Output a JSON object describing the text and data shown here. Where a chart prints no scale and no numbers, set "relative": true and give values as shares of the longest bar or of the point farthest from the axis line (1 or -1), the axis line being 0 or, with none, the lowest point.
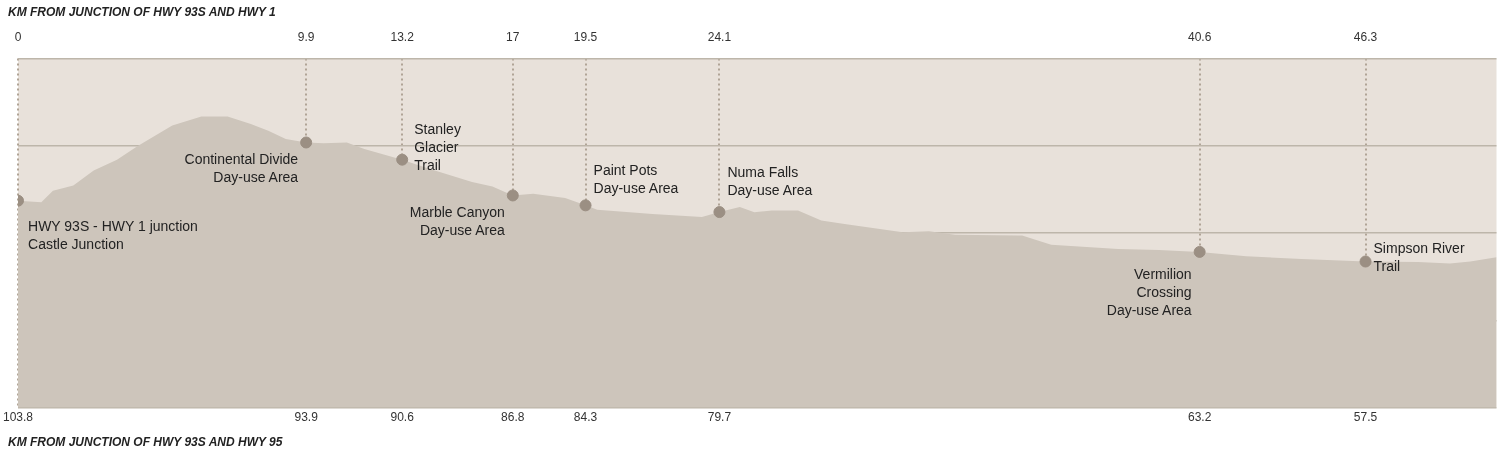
{
  "chart_data": {
    "type": "area",
    "relative": true,
    "grid": true,
    "xlabel": "KM FROM JUNCTION OF HWY 93S AND HWY 95",
    "x2label": "KM FROM JUNCTION OF HWY 93S AND HWY 1",
    "xlim": [
      103.8,
      53.0
    ],
    "xticks": [
      103.8,
      93.9,
      90.6,
      86.8,
      84.3,
      79.7,
      63.2,
      57.5
    ],
    "x2lim": [
      0,
      50.8
    ],
    "x2ticks": [
      0,
      9.9,
      13.2,
      17,
      19.5,
      24.1,
      40.6,
      46.3
    ],
    "series": [
      {
        "type": "area",
        "color": "#cdc5bb",
        "x": [
          103.8,
          103.0,
          102.6,
          101.9,
          101.2,
          100.4,
          99.7,
          98.5,
          97.5,
          96.6,
          95.8,
          95.2,
          94.6,
          93.9,
          93.3,
          92.5,
          91.9,
          90.6,
          89.7,
          88.2,
          87.5,
          86.8,
          86.1,
          85.0,
          84.3,
          83.9,
          82.0,
          80.3,
          79.7,
          79.0,
          78.5,
          77.9,
          77.0,
          76.2,
          75.4,
          73.4,
          72.5,
          71.6,
          69.3,
          68.3,
          66.0,
          64.6,
          63.2,
          61.6,
          59.7,
          57.5,
          55.7,
          54.6,
          53.9,
          53.0
        ],
        "values": [
          0.711,
          0.706,
          0.745,
          0.763,
          0.815,
          0.852,
          0.898,
          0.969,
          1,
          1,
          0.975,
          0.951,
          0.923,
          0.911,
          0.908,
          0.911,
          0.889,
          0.852,
          0.822,
          0.775,
          0.76,
          0.729,
          0.735,
          0.72,
          0.695,
          0.68,
          0.665,
          0.655,
          0.672,
          0.689,
          0.671,
          0.677,
          0.677,
          0.643,
          0.631,
          0.603,
          0.606,
          0.594,
          0.591,
          0.56,
          0.545,
          0.542,
          0.535,
          0.52,
          0.511,
          0.502,
          0.5,
          0.495,
          0.502,
          0.517
        ]
      },
      {
        "type": "scatter",
        "color": "#9b8f83",
        "marker": "circle",
        "x": [
          103.8,
          93.9,
          90.6,
          86.8,
          84.3,
          79.7,
          63.2,
          57.5
        ],
        "values": [
          0.711,
          0.911,
          0.852,
          0.729,
          0.695,
          0.672,
          0.535,
          0.502
        ]
      }
    ],
    "annotations": [
      {
        "text": "HWY 93S - HWY 1 junction\nCastle Junction",
        "x": 103.8,
        "y": 0.711
      },
      {
        "text": "Continental Divide\nDay-use Area",
        "x": 93.9,
        "y": 0.911
      },
      {
        "text": "Stanley\nGlacier\nTrail",
        "x": 90.6,
        "y": 0.852
      },
      {
        "text": "Marble Canyon\nDay-use Area",
        "x": 86.8,
        "y": 0.729
      },
      {
        "text": "Paint Pots\nDay-use Area",
        "x": 84.3,
        "y": 0.695
      },
      {
        "text": "Numa Falls\nDay-use Area",
        "x": 79.7,
        "y": 0.672
      },
      {
        "text": "Vermilion\nCrossing\nDay-use Area",
        "x": 63.2,
        "y": 0.535
      },
      {
        "text": "Simpson River\nTrail",
        "x": 57.5,
        "y": 0.502
      }
    ]
  }
}
